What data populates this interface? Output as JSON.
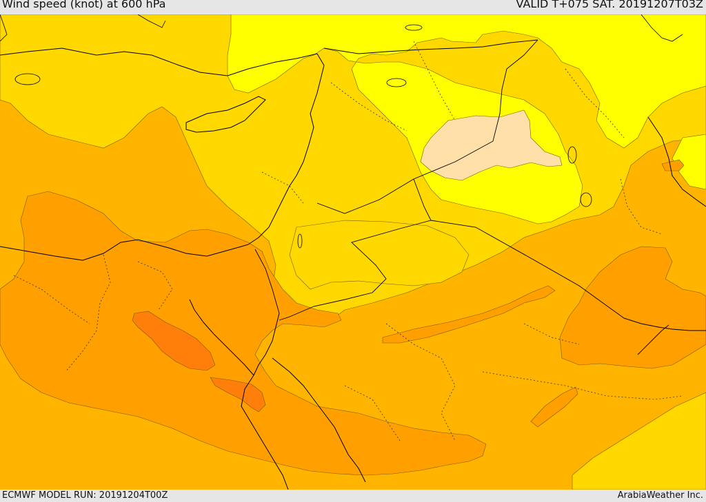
{
  "header": {
    "title": "Wind speed (knot) at 600 hPa",
    "valid": "VALID T+075 SAT. 20191207T03Z"
  },
  "footer": {
    "model_run": "ECMWF MODEL RUN: 20191204T00Z",
    "brand": "ArabiaWeather Inc."
  },
  "colors": {
    "band_very_low": "#ffe0a8",
    "band_low": "#ffff00",
    "band_mid_low": "#ffd800",
    "band_mid": "#ffb400",
    "band_high": "#ff9f00",
    "band_very_high": "#ff7f0a",
    "coast": "#000000",
    "border": "#000000",
    "contour": "#7a5c00"
  },
  "legend": []
}
